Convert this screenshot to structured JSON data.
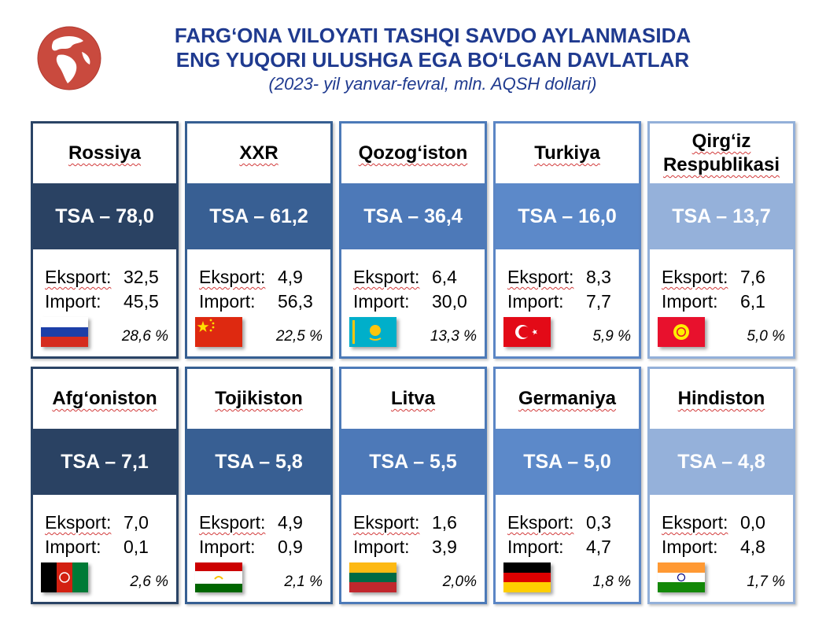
{
  "header": {
    "title_line1": "FARG‘ONA VILOYATI TASHQI SAVDO AYLANMASIDA",
    "title_line2": "ENG YUQORI ULUSHGA EGA BO‘LGAN DAVLATLAR",
    "subtitle": "(2023- yil yanvar-fevral, mln. AQSH dollari)",
    "logo_icon": "globe-icon"
  },
  "countries": [
    {
      "name": "Rossiya",
      "tsa": "TSA – 78,0",
      "export_label": "Eksport:",
      "export_value": "32,5",
      "import_label": "Import:",
      "import_value": "45,5",
      "share": "28,6 %",
      "flag": "russia-flag-icon"
    },
    {
      "name": "XXR",
      "tsa": "TSA – 61,2",
      "export_label": "Eksport:",
      "export_value": "4,9",
      "import_label": "Import:",
      "import_value": "56,3",
      "share": "22,5 %",
      "flag": "china-flag-icon"
    },
    {
      "name": "Qozog‘iston",
      "tsa": "TSA – 36,4",
      "export_label": "Eksport:",
      "export_value": "6,4",
      "import_label": "Import:",
      "import_value": "30,0",
      "share": "13,3 %",
      "flag": "kazakhstan-flag-icon"
    },
    {
      "name": "Turkiya",
      "tsa": "TSA – 16,0",
      "export_label": "Eksport:",
      "export_value": "8,3",
      "import_label": "Import:",
      "import_value": "7,7",
      "share": "5,9 %",
      "flag": "turkey-flag-icon"
    },
    {
      "name": "Qirg‘iz Respublikasi",
      "tsa": "TSA – 13,7",
      "export_label": "Eksport:",
      "export_value": "7,6",
      "import_label": "Import:",
      "import_value": "6,1",
      "share": "5,0 %",
      "flag": "kyrgyzstan-flag-icon"
    },
    {
      "name": "Afg‘oniston",
      "tsa": "TSA – 7,1",
      "export_label": "Eksport:",
      "export_value": "7,0",
      "import_label": "Import:",
      "import_value": "0,1",
      "share": "2,6 %",
      "flag": "afghanistan-flag-icon"
    },
    {
      "name": "Tojikiston",
      "tsa": "TSA – 5,8",
      "export_label": "Eksport:",
      "export_value": "4,9",
      "import_label": "Import:",
      "import_value": "0,9",
      "share": "2,1 %",
      "flag": "tajikistan-flag-icon"
    },
    {
      "name": "Litva",
      "tsa": "TSA – 5,5",
      "export_label": "Eksport:",
      "export_value": "1,6",
      "import_label": "Import:",
      "import_value": "3,9",
      "share": "2,0%",
      "flag": "lithuania-flag-icon"
    },
    {
      "name": "Germaniya",
      "tsa": "TSA – 5,0",
      "export_label": "Eksport:",
      "export_value": "0,3",
      "import_label": "Import:",
      "import_value": "4,7",
      "share": "1,8 %",
      "flag": "germany-flag-icon"
    },
    {
      "name": "Hindiston",
      "tsa": "TSA – 4,8",
      "export_label": "Eksport:",
      "export_value": "0,0",
      "import_label": "Import:",
      "import_value": "4,8",
      "share": "1,7 %",
      "flag": "india-flag-icon"
    }
  ]
}
